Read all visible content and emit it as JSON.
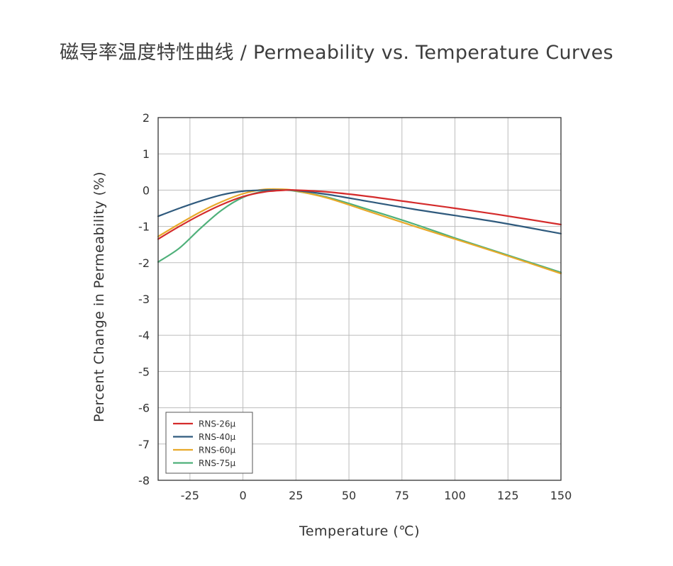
{
  "title": "磁导率温度特性曲线 / Permeability vs. Temperature Curves",
  "chart_data": {
    "type": "line",
    "title": "磁导率温度特性曲线 / Permeability vs. Temperature Curves",
    "xlabel": "Temperature (℃)",
    "ylabel": "Percent Change in Permeability (%)",
    "xlim": [
      -40,
      150
    ],
    "ylim": [
      -8,
      2
    ],
    "xticks": [
      -25,
      0,
      25,
      50,
      75,
      100,
      125,
      150
    ],
    "yticks": [
      2,
      1,
      0,
      -1,
      -2,
      -3,
      -4,
      -5,
      -6,
      -7,
      -8
    ],
    "grid": true,
    "legend_position": "bottom-left",
    "series": [
      {
        "name": "RNS-26μ",
        "color": "#d42b2b",
        "x": [
          -40,
          -30,
          -20,
          -10,
          0,
          10,
          20,
          25,
          40,
          60,
          80,
          100,
          120,
          150
        ],
        "y": [
          -1.35,
          -1.0,
          -0.68,
          -0.4,
          -0.18,
          -0.05,
          0.0,
          0.0,
          -0.05,
          -0.18,
          -0.34,
          -0.5,
          -0.67,
          -0.95
        ]
      },
      {
        "name": "RNS-40μ",
        "color": "#2f5a7d",
        "x": [
          -40,
          -30,
          -20,
          -10,
          0,
          10,
          20,
          25,
          40,
          60,
          80,
          100,
          120,
          150
        ],
        "y": [
          -0.72,
          -0.5,
          -0.3,
          -0.13,
          -0.03,
          0.0,
          0.0,
          -0.01,
          -0.12,
          -0.32,
          -0.52,
          -0.7,
          -0.88,
          -1.2
        ]
      },
      {
        "name": "RNS-60μ",
        "color": "#e8a92a",
        "x": [
          -40,
          -30,
          -20,
          -10,
          0,
          10,
          20,
          25,
          40,
          60,
          80,
          100,
          120,
          150
        ],
        "y": [
          -1.28,
          -0.93,
          -0.6,
          -0.32,
          -0.1,
          0.02,
          0.02,
          -0.02,
          -0.22,
          -0.6,
          -0.98,
          -1.35,
          -1.72,
          -2.3
        ]
      },
      {
        "name": "RNS-75μ",
        "color": "#4fb07a",
        "x": [
          -40,
          -30,
          -20,
          -10,
          0,
          10,
          20,
          25,
          40,
          60,
          80,
          100,
          120,
          150
        ],
        "y": [
          -1.98,
          -1.6,
          -1.05,
          -0.55,
          -0.2,
          -0.03,
          0.0,
          -0.03,
          -0.2,
          -0.55,
          -0.92,
          -1.32,
          -1.7,
          -2.27
        ]
      }
    ]
  }
}
